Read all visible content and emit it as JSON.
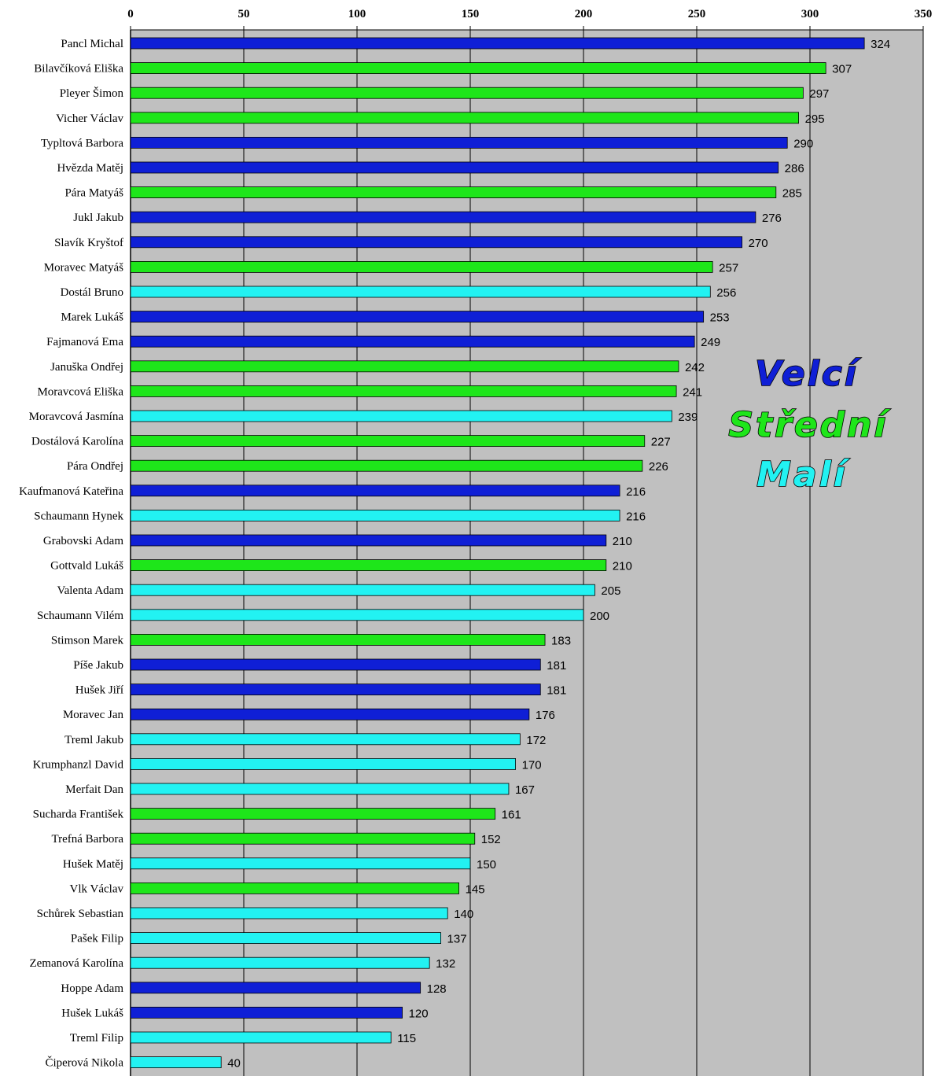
{
  "chart_data": {
    "type": "bar",
    "orientation": "horizontal",
    "title": "",
    "xlabel": "",
    "ylabel": "",
    "xlim": [
      0,
      350
    ],
    "x_ticks": [
      0,
      50,
      100,
      150,
      200,
      250,
      300,
      350
    ],
    "grid": "vertical",
    "legend_placement": "right, inside plot",
    "groups": [
      {
        "name": "Velcí",
        "color": "#0f1fd6"
      },
      {
        "name": "Střední",
        "color": "#1ee61a"
      },
      {
        "name": "Malí",
        "color": "#22f2f2"
      }
    ],
    "bars": [
      {
        "name": "Pancl Michal",
        "value": 324,
        "group": "Velcí"
      },
      {
        "name": "Bilavčíková Eliška",
        "value": 307,
        "group": "Střední"
      },
      {
        "name": "Pleyer Šimon",
        "value": 297,
        "group": "Střední"
      },
      {
        "name": "Vicher Václav",
        "value": 295,
        "group": "Střední"
      },
      {
        "name": "Typltová Barbora",
        "value": 290,
        "group": "Velcí"
      },
      {
        "name": "Hvězda Matěj",
        "value": 286,
        "group": "Velcí"
      },
      {
        "name": "Pára Matyáš",
        "value": 285,
        "group": "Střední"
      },
      {
        "name": "Jukl Jakub",
        "value": 276,
        "group": "Velcí"
      },
      {
        "name": "Slavík Kryštof",
        "value": 270,
        "group": "Velcí"
      },
      {
        "name": "Moravec Matyáš",
        "value": 257,
        "group": "Střední"
      },
      {
        "name": "Dostál Bruno",
        "value": 256,
        "group": "Malí"
      },
      {
        "name": "Marek Lukáš",
        "value": 253,
        "group": "Velcí"
      },
      {
        "name": "Fajmanová Ema",
        "value": 249,
        "group": "Velcí"
      },
      {
        "name": "Januška Ondřej",
        "value": 242,
        "group": "Střední"
      },
      {
        "name": "Moravcová Eliška",
        "value": 241,
        "group": "Střední"
      },
      {
        "name": "Moravcová Jasmína",
        "value": 239,
        "group": "Malí"
      },
      {
        "name": "Dostálová Karolína",
        "value": 227,
        "group": "Střední"
      },
      {
        "name": "Pára Ondřej",
        "value": 226,
        "group": "Střední"
      },
      {
        "name": "Kaufmanová Kateřina",
        "value": 216,
        "group": "Velcí"
      },
      {
        "name": "Schaumann Hynek",
        "value": 216,
        "group": "Malí"
      },
      {
        "name": "Grabovski Adam",
        "value": 210,
        "group": "Velcí"
      },
      {
        "name": "Gottvald Lukáš",
        "value": 210,
        "group": "Střední"
      },
      {
        "name": "Valenta Adam",
        "value": 205,
        "group": "Malí"
      },
      {
        "name": "Schaumann Vilém",
        "value": 200,
        "group": "Malí"
      },
      {
        "name": "Stimson Marek",
        "value": 183,
        "group": "Střední"
      },
      {
        "name": "Píše Jakub",
        "value": 181,
        "group": "Velcí"
      },
      {
        "name": "Hušek Jiří",
        "value": 181,
        "group": "Velcí"
      },
      {
        "name": "Moravec Jan",
        "value": 176,
        "group": "Velcí"
      },
      {
        "name": "Treml Jakub",
        "value": 172,
        "group": "Malí"
      },
      {
        "name": "Krumphanzl David",
        "value": 170,
        "group": "Malí"
      },
      {
        "name": "Merfait Dan",
        "value": 167,
        "group": "Malí"
      },
      {
        "name": "Sucharda František",
        "value": 161,
        "group": "Střední"
      },
      {
        "name": "Trefná Barbora",
        "value": 152,
        "group": "Střední"
      },
      {
        "name": "Hušek Matěj",
        "value": 150,
        "group": "Malí"
      },
      {
        "name": "Vlk Václav",
        "value": 145,
        "group": "Střední"
      },
      {
        "name": "Schůrek Sebastian",
        "value": 140,
        "group": "Malí"
      },
      {
        "name": "Pašek Filip",
        "value": 137,
        "group": "Malí"
      },
      {
        "name": "Zemanová Karolína",
        "value": 132,
        "group": "Malí"
      },
      {
        "name": "Hoppe Adam",
        "value": 128,
        "group": "Velcí"
      },
      {
        "name": "Hušek  Lukáš",
        "value": 120,
        "group": "Velcí"
      },
      {
        "name": "Treml Filip",
        "value": 115,
        "group": "Malí"
      },
      {
        "name": "Čiperová Nikola",
        "value": 40,
        "group": "Malí"
      }
    ]
  }
}
